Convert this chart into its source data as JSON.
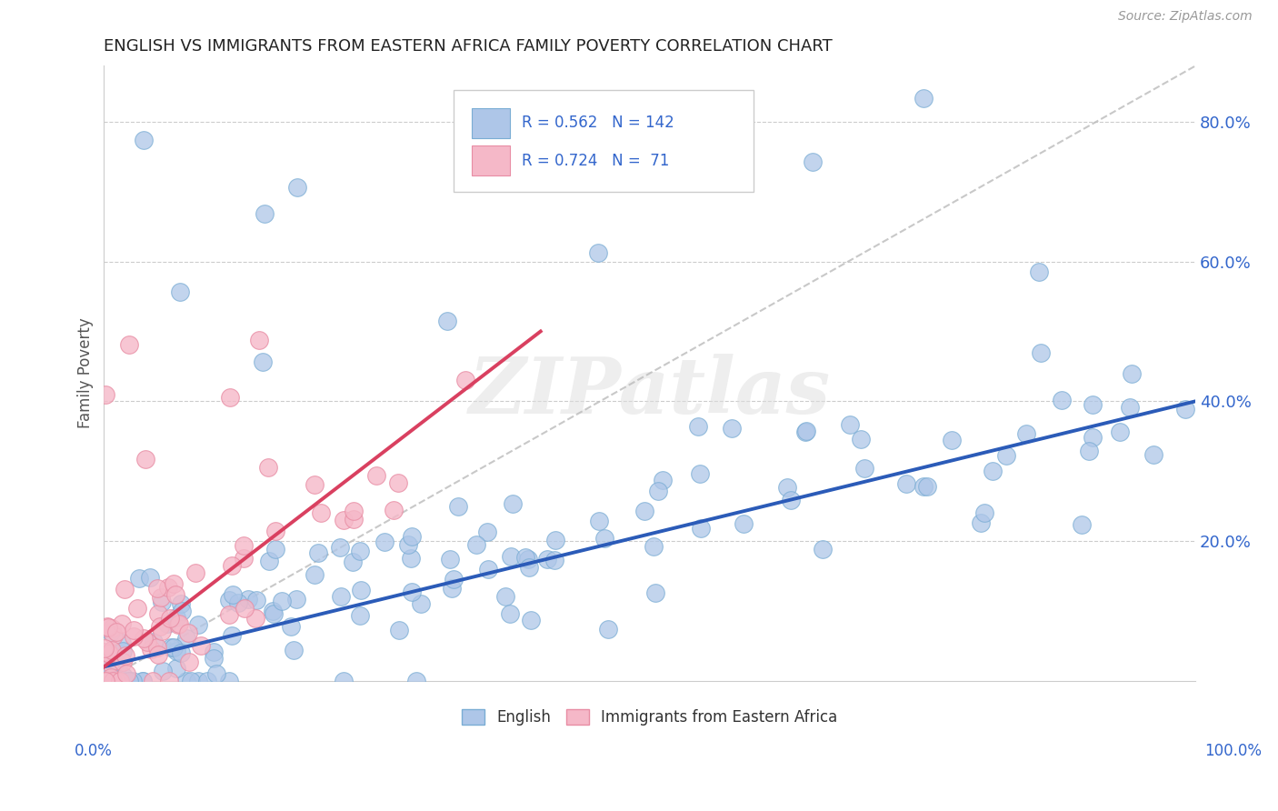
{
  "title": "ENGLISH VS IMMIGRANTS FROM EASTERN AFRICA FAMILY POVERTY CORRELATION CHART",
  "source": "Source: ZipAtlas.com",
  "ylabel": "Family Poverty",
  "legend_label1": "English",
  "legend_label2": "Immigrants from Eastern Africa",
  "R1": 0.562,
  "N1": 142,
  "R2": 0.724,
  "N2": 71,
  "color_blue_fill": "#AEC6E8",
  "color_blue_edge": "#7AADD4",
  "color_pink_fill": "#F5B8C8",
  "color_pink_edge": "#E88DA4",
  "color_line_blue": "#2B5BB8",
  "color_line_pink": "#D94060",
  "color_dash": "#BBBBBB",
  "color_stats": "#3366CC",
  "color_title": "#222222",
  "color_source": "#999999",
  "color_ylabel": "#555555",
  "watermark_color": "#DDDDDD",
  "background": "#FFFFFF",
  "xlim": [
    0,
    1.0
  ],
  "ylim": [
    0,
    0.88
  ],
  "y_ticks": [
    0.0,
    0.2,
    0.4,
    0.6,
    0.8
  ],
  "y_tick_labels": [
    "",
    "20.0%",
    "40.0%",
    "60.0%",
    "80.0%"
  ],
  "blue_line_x0": 0.0,
  "blue_line_y0": 0.02,
  "blue_line_x1": 1.0,
  "blue_line_y1": 0.4,
  "pink_line_x0": 0.0,
  "pink_line_y0": 0.02,
  "pink_line_x1": 0.4,
  "pink_line_y1": 0.5,
  "dash_line_x0": 0.0,
  "dash_line_y0": 0.0,
  "dash_line_x1": 1.0,
  "dash_line_y1": 0.88
}
